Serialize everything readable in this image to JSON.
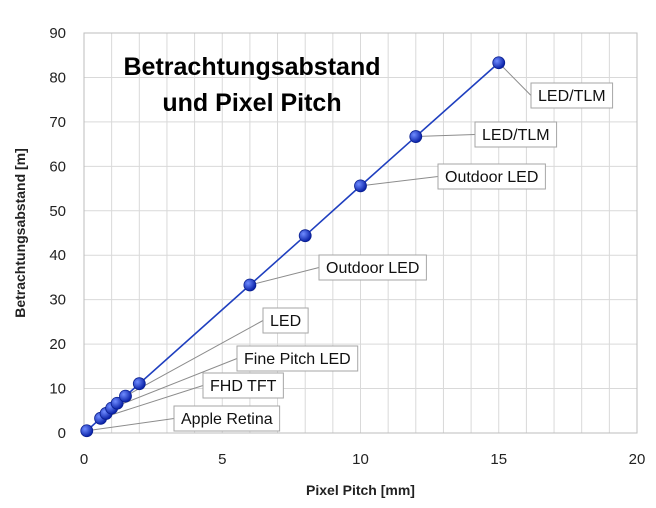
{
  "chart_data": {
    "type": "scatter",
    "title_line1": "Betrachtungsabstand",
    "title_line2": "und Pixel Pitch",
    "xlabel": "Pixel Pitch [mm]",
    "ylabel": "Betrachtungsabstand [m]",
    "xlim": [
      0,
      20
    ],
    "ylim": [
      0,
      90
    ],
    "xticks": [
      0,
      5,
      10,
      15,
      20
    ],
    "yticks": [
      0,
      10,
      20,
      30,
      40,
      50,
      60,
      70,
      80,
      90
    ],
    "grid": true,
    "line_color": "#1f3fbf",
    "marker_color": "#1f3fbf",
    "series": [
      {
        "x": [
          0.1,
          0.6,
          0.8,
          1.0,
          1.2,
          1.5,
          2.0,
          6.0,
          8.0,
          10.0,
          12.0,
          15.0
        ],
        "y": [
          0.5,
          3.3,
          4.4,
          5.6,
          6.7,
          8.3,
          11.1,
          33.3,
          44.4,
          55.6,
          66.7,
          83.3
        ]
      }
    ],
    "annotations": [
      {
        "text": "Apple Retina",
        "x": 0.1,
        "y": 0.5
      },
      {
        "text": "FHD TFT",
        "x": 0.6,
        "y": 3.3
      },
      {
        "text": "Fine Pitch LED",
        "x": 1.0,
        "y": 5.6
      },
      {
        "text": "LED",
        "x": 1.5,
        "y": 8.3
      },
      {
        "text": "Outdoor LED",
        "x": 6.0,
        "y": 33.3
      },
      {
        "text": "Outdoor LED",
        "x": 10.0,
        "y": 55.6
      },
      {
        "text": "LED/TLM",
        "x": 12.0,
        "y": 66.7
      },
      {
        "text": "LED/TLM",
        "x": 15.0,
        "y": 83.3
      }
    ]
  }
}
